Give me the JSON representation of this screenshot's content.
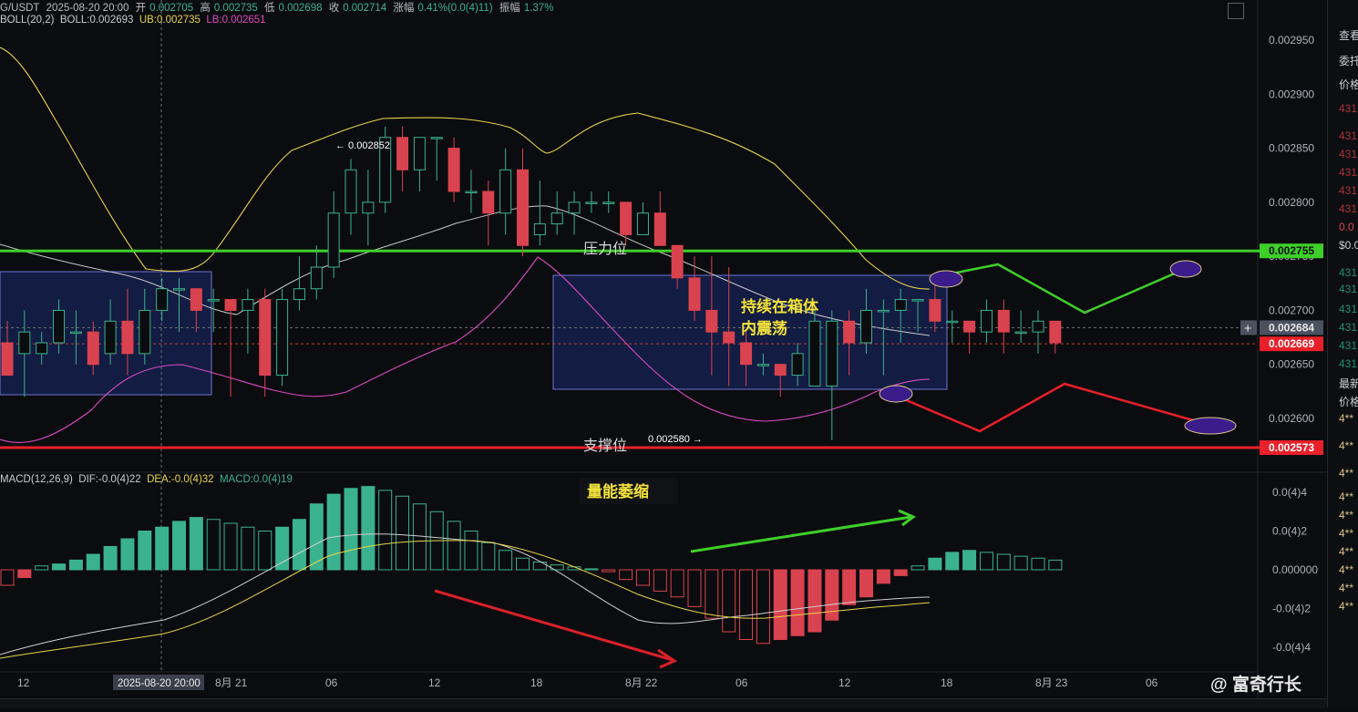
{
  "header": {
    "symbol": "G/USDT",
    "datetime": "2025-08-20 20:00",
    "open_label": "开",
    "open": "0.002705",
    "high_label": "高",
    "high": "0.002735",
    "low_label": "低",
    "low": "0.002698",
    "close_label": "收",
    "close": "0.002714",
    "change_label": "涨幅",
    "change": "0.41%(0.0(4)11)",
    "amplitude_label": "振幅",
    "amplitude": "1.37%"
  },
  "boll_header": {
    "name": "BOLL(20,2)",
    "boll": "BOLL:0.002693",
    "ub": "UB:0.002735",
    "lb": "LB:0.002651"
  },
  "macd_header": {
    "name": "MACD(12,26,9)",
    "dif": "DIF:-0.0(4)22",
    "dea": "DEA:-0.0(4)32",
    "macd": "MACD:0.0(4)19"
  },
  "colors": {
    "up": "#3bb28f",
    "down": "#d9434f",
    "boll_mid": "#c8c8c8",
    "ub": "#e6d44a",
    "lb": "#d94bbf",
    "resistance": "#3ecf2a",
    "support": "#e8202a",
    "box_fill": "#1c2a6e",
    "box_stroke": "#6f73d6",
    "ellipse": "#3a1d8a"
  },
  "annotations": {
    "resistance_label": "压力位",
    "support_label": "支撑位",
    "box_text_1": "持续在箱体",
    "box_text_2": "内震荡",
    "volume_text": "量能萎缩",
    "high_marker": "0.002852",
    "low_marker": "0.002580"
  },
  "crosshair_time": "2025-08-20 20:00",
  "watermark": "富奇行长",
  "right_panel": [
    "查看",
    "委托",
    "价格",
    "431",
    "431",
    "431",
    "431",
    "431",
    "431",
    "0.0",
    "$0.0",
    "431",
    "431",
    "431",
    "431",
    "431",
    "431",
    "最新",
    "价格",
    "4**",
    "4**",
    "4**",
    "4**",
    "4**",
    "4**",
    "4**",
    "4**",
    "4**",
    "4**"
  ],
  "chart_data": {
    "type": "candlestick",
    "title": "",
    "price_axis": {
      "min": 0.00256,
      "max": 0.00296,
      "ticks": [
        "0.002950",
        "0.002900",
        "0.002850",
        "0.002800",
        "0.002750",
        "0.002700",
        "0.002650",
        "0.002600"
      ]
    },
    "price_tags": [
      {
        "label": "0.002755",
        "value": 0.002755,
        "color": "#3ecf2a"
      },
      {
        "label": "0.002684",
        "value": 0.002684,
        "color": "#4a5160"
      },
      {
        "label": "0.002669",
        "value": 0.002669,
        "color": "#e8202a"
      },
      {
        "label": "0.002573",
        "value": 0.002573,
        "color": "#e8202a"
      }
    ],
    "resistance": 0.002755,
    "support": 0.002573,
    "x_ticks": [
      "12",
      "2025-08-20 20:00",
      "8月 21",
      "06",
      "12",
      "18",
      "8月 22",
      "06",
      "12",
      "18",
      "8月 23",
      "06"
    ],
    "macd_axis": {
      "min": -0.00045,
      "max": 0.00045,
      "ticks": [
        "0.0(4)4",
        "0.0(4)2",
        "0.000000",
        "-0.0(4)2",
        "-0.0(4)4"
      ]
    },
    "candles": [
      [
        2.00267,
        2.00264,
        2.00269,
        2.00267
      ],
      [
        2.00266,
        2.00268,
        2.0027,
        2.00262
      ],
      [
        2.00266,
        2.00267,
        2.00268,
        2.00265
      ],
      [
        2.00267,
        2.0027,
        2.00271,
        2.00266
      ],
      [
        2.00268,
        2.00268,
        2.0027,
        2.00265
      ],
      [
        2.00268,
        2.00265,
        2.00269,
        2.00264
      ],
      [
        2.00266,
        2.00269,
        2.00271,
        2.00265
      ],
      [
        2.00269,
        2.00266,
        2.00272,
        2.00264
      ],
      [
        2.00266,
        2.0027,
        2.00272,
        2.00265
      ],
      [
        2.0027,
        2.00272,
        2.00273,
        2.00269
      ],
      [
        2.00272,
        2.00272,
        2.00273,
        2.00268
      ],
      [
        2.00272,
        2.0027,
        2.00272,
        2.00268
      ],
      [
        2.00271,
        2.00271,
        2.00272,
        2.00268
      ],
      [
        2.00271,
        2.0027,
        2.00271,
        2.00262
      ],
      [
        2.0027,
        2.00271,
        2.00272,
        2.00266
      ],
      [
        2.00271,
        2.00264,
        2.00272,
        2.00262
      ],
      [
        2.00264,
        2.00271,
        2.00272,
        2.00263
      ],
      [
        2.00271,
        2.00272,
        2.00275,
        2.0027
      ],
      [
        2.00272,
        2.00274,
        2.00276,
        2.00271
      ],
      [
        2.00274,
        2.00279,
        2.00281,
        2.00273
      ],
      [
        2.00279,
        2.00283,
        2.00284,
        2.00277
      ],
      [
        2.00279,
        2.0028,
        2.00283,
        2.00276
      ],
      [
        2.0028,
        2.00286,
        2.00287,
        2.00279
      ],
      [
        2.00286,
        2.00283,
        2.00287,
        2.00281
      ],
      [
        2.00283,
        2.00286,
        2.00285,
        2.00281
      ],
      [
        2.00286,
        2.00286,
        2.00285,
        2.00282
      ],
      [
        2.00285,
        2.00281,
        2.00286,
        2.0028
      ],
      [
        2.00281,
        2.00281,
        2.00283,
        2.00279
      ],
      [
        2.00281,
        2.00279,
        2.00282,
        2.00276
      ],
      [
        2.00279,
        2.00283,
        2.00285,
        2.00277
      ],
      [
        2.00283,
        2.00276,
        2.00285,
        2.00275
      ],
      [
        2.00277,
        2.00278,
        2.00282,
        2.00276
      ],
      [
        2.00278,
        2.00279,
        2.00281,
        2.00277
      ],
      [
        2.00279,
        2.0028,
        2.00281,
        2.00277
      ],
      [
        2.0028,
        2.0028,
        2.00281,
        2.00279
      ],
      [
        2.0028,
        2.0028,
        2.00281,
        2.00279
      ],
      [
        2.0028,
        2.00277,
        2.0028,
        2.00276
      ],
      [
        2.00277,
        2.00279,
        2.0028,
        2.00277
      ],
      [
        2.00279,
        2.00276,
        2.00281,
        2.00276
      ],
      [
        2.00276,
        2.00273,
        2.00276,
        2.00272
      ],
      [
        2.00273,
        2.0027,
        2.00275,
        2.00269
      ],
      [
        2.0027,
        2.00268,
        2.00275,
        2.00264
      ],
      [
        2.00268,
        2.00267,
        2.00274,
        2.00263
      ],
      [
        2.00267,
        2.00265,
        2.00268,
        2.00263
      ],
      [
        2.00265,
        2.00265,
        2.00266,
        2.00264
      ],
      [
        2.00265,
        2.00264,
        2.00265,
        2.00262
      ],
      [
        2.00264,
        2.00266,
        2.00267,
        2.00263
      ],
      [
        2.00263,
        2.00269,
        2.0027,
        2.00263
      ],
      [
        2.00263,
        2.00269,
        2.0027,
        2.00258
      ],
      [
        2.00269,
        2.00267,
        2.0027,
        2.00264
      ],
      [
        2.00267,
        2.0027,
        2.00272,
        2.00266
      ],
      [
        2.0027,
        2.0027,
        2.00271,
        2.00264
      ],
      [
        2.0027,
        2.00271,
        2.00272,
        2.00267
      ],
      [
        2.00271,
        2.00271,
        2.00271,
        2.00268
      ],
      [
        2.00271,
        2.00269,
        2.00273,
        2.00268
      ],
      [
        2.00269,
        2.00269,
        2.0027,
        2.00267
      ],
      [
        2.00269,
        2.00268,
        2.00269,
        2.00266
      ],
      [
        2.00268,
        2.0027,
        2.00271,
        2.00267
      ],
      [
        2.0027,
        2.00268,
        2.00271,
        2.00266
      ],
      [
        2.00268,
        2.00268,
        2.0027,
        2.00267
      ],
      [
        2.00268,
        2.00269,
        2.0027,
        2.00266
      ],
      [
        2.00269,
        2.00267,
        2.00269,
        2.00266
      ]
    ]
  }
}
